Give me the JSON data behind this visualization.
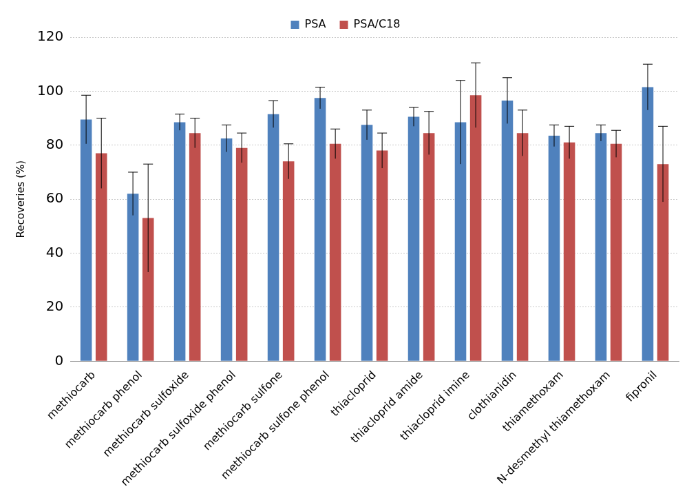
{
  "chart_data": {
    "type": "bar",
    "ylabel": "Recoveries (%)",
    "categories": [
      "methiocarb",
      "methiocarb phenol",
      "methiocarb sulfoxide",
      "methiocarb sulfoxide phenol",
      "methiocarb sulfone",
      "methiocarb sulfone phenol",
      "thiacloprid",
      "thiacloprid amide",
      "thiacloprid imine",
      "clothianidin",
      "thiamethoxam",
      "N-desmethyl thiamethoxam",
      "fipronil"
    ],
    "series": [
      {
        "name": "PSA",
        "color": "#4f81bd",
        "values": [
          89.5,
          62,
          88.5,
          82.5,
          91.5,
          97.5,
          87.5,
          90.5,
          88.5,
          96.5,
          83.5,
          84.5,
          101.5
        ],
        "errors": [
          9,
          8,
          3,
          5,
          5,
          4,
          5.5,
          3.5,
          15.5,
          8.5,
          4,
          3,
          8.5
        ]
      },
      {
        "name": "PSA/C18",
        "color": "#c0504d",
        "values": [
          77,
          53,
          84.5,
          79,
          74,
          80.5,
          78,
          84.5,
          98.5,
          84.5,
          81,
          80.5,
          73
        ],
        "errors": [
          13,
          20,
          5.5,
          5.5,
          6.5,
          5.5,
          6.5,
          8,
          12,
          8.5,
          6,
          5,
          14
        ]
      }
    ],
    "ylim": [
      0,
      120
    ],
    "yticks": [
      0,
      20,
      40,
      60,
      80,
      100,
      120
    ],
    "grid": "y",
    "legend": "top"
  }
}
